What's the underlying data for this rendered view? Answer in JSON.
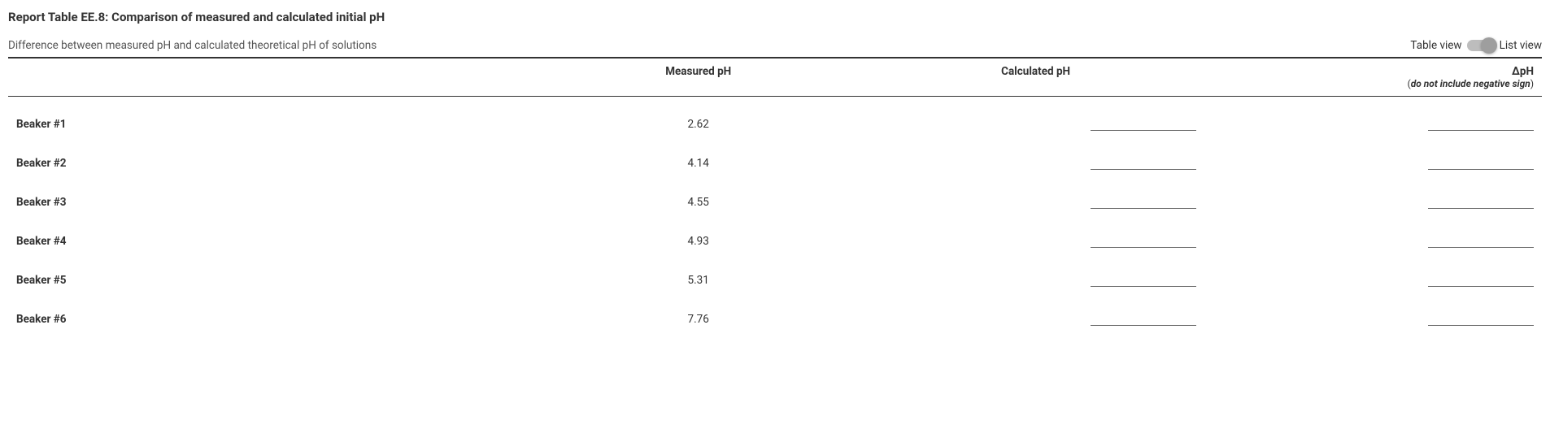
{
  "title": "Report Table EE.8: Comparison of measured and calculated initial pH",
  "subtitle": "Difference between measured pH and calculated theoretical pH of solutions",
  "viewToggle": {
    "leftLabel": "Table view",
    "rightLabel": "List view"
  },
  "columns": {
    "blank": "",
    "measured": "Measured pH",
    "calculated": "Calculated pH",
    "delta": "ΔpH",
    "deltaNote": "do not include negative sign"
  },
  "rows": [
    {
      "label": "Beaker #1",
      "measured": "2.62",
      "calculated": "",
      "delta": ""
    },
    {
      "label": "Beaker #2",
      "measured": "4.14",
      "calculated": "",
      "delta": ""
    },
    {
      "label": "Beaker #3",
      "measured": "4.55",
      "calculated": "",
      "delta": ""
    },
    {
      "label": "Beaker #4",
      "measured": "4.93",
      "calculated": "",
      "delta": ""
    },
    {
      "label": "Beaker #5",
      "measured": "5.31",
      "calculated": "",
      "delta": ""
    },
    {
      "label": "Beaker #6",
      "measured": "7.76",
      "calculated": "",
      "delta": ""
    }
  ]
}
